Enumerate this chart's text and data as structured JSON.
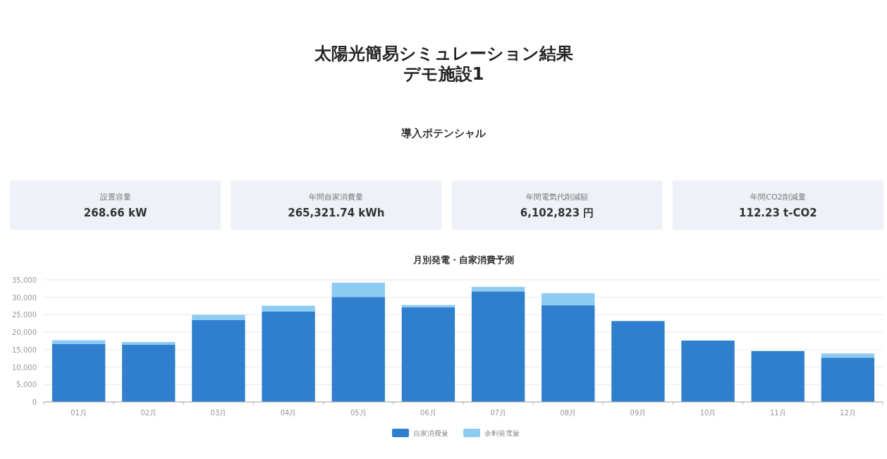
{
  "chart_data": [
    {
      "type": "other",
      "title": "太陽光簡易シミュレーション結果",
      "subtitle": "デモ施設1",
      "annotations": [
        "導入ポテンシャル",
        "設置容量",
        "268.66 kW",
        "年間自家消費量",
        "265,321.74 kWh",
        "年間電気代削減額",
        "6,102,823 円",
        "年間CO2削減量",
        "112.23 t-CO2"
      ]
    },
    {
      "type": "bar",
      "title": "月別発電・自家消費予測",
      "stacked": true,
      "categories": [
        "01月",
        "02月",
        "03月",
        "04月",
        "05月",
        "06月",
        "07月",
        "08月",
        "09月",
        "10月",
        "11月",
        "12月"
      ],
      "series": [
        {
          "name": "自家消費量",
          "color": "#2f7fce",
          "values": [
            16600,
            16400,
            23500,
            25900,
            30100,
            27100,
            31700,
            27700,
            23200,
            17600,
            14600,
            12700
          ]
        },
        {
          "name": "余剰発電量",
          "color": "#8ecbf2",
          "values": [
            1100,
            800,
            1500,
            1700,
            4100,
            700,
            1300,
            3500,
            0,
            0,
            0,
            1200
          ]
        }
      ],
      "ylim": [
        0,
        35000
      ],
      "yticks": [
        0,
        {
          "value": 5000,
          "label": "5,000"
        },
        {
          "value": 10000,
          "label": "10,000"
        },
        {
          "value": 15000,
          "label": "15,000"
        },
        {
          "value": 20000,
          "label": "20,000"
        },
        {
          "value": 25000,
          "label": "25,000"
        },
        {
          "value": 30000,
          "label": "30,000"
        },
        {
          "value": 35000,
          "label": "35,000"
        }
      ],
      "grid": "y",
      "legend": "bottom"
    }
  ]
}
